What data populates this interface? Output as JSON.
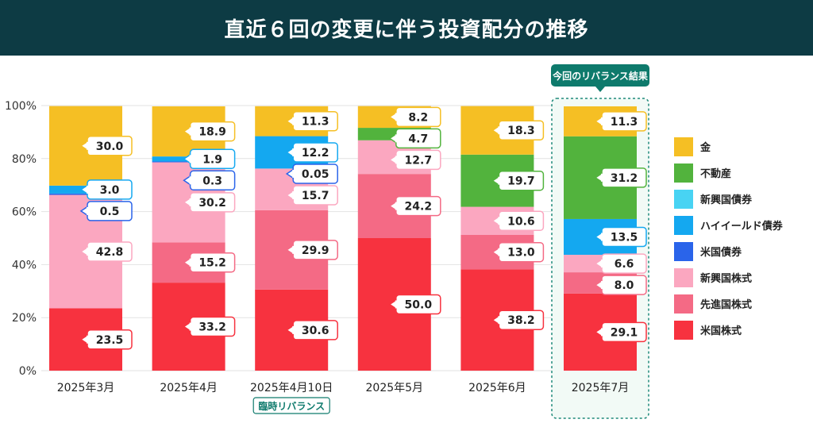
{
  "header": {
    "title": "直近６回の変更に伴う投資配分の推移"
  },
  "badges": {
    "current_result": "今回のリバランス結果",
    "temporary_rebalance": "臨時リバランス"
  },
  "chart_data": {
    "type": "bar",
    "stacked": true,
    "categories": [
      "2025年3月",
      "2025年4月",
      "2025年4月10日",
      "2025年5月",
      "2025年6月",
      "2025年7月"
    ],
    "y_ticks": [
      "0%",
      "20%",
      "40%",
      "60%",
      "80%",
      "100%"
    ],
    "ylim": [
      0,
      100
    ],
    "series": [
      {
        "name": "米国株式",
        "color": "#f7323f",
        "values": [
          23.5,
          33.2,
          30.6,
          50.0,
          38.2,
          29.1
        ]
      },
      {
        "name": "先進国株式",
        "color": "#f46a85",
        "values": [
          0,
          15.2,
          29.9,
          24.2,
          13.0,
          8.0
        ]
      },
      {
        "name": "新興国株式",
        "color": "#fba7c0",
        "values": [
          42.8,
          30.2,
          15.7,
          12.7,
          10.6,
          6.6
        ]
      },
      {
        "name": "米国債券",
        "color": "#2a64ea",
        "values": [
          0.5,
          0.3,
          0.05,
          0,
          0,
          0
        ]
      },
      {
        "name": "ハイイールド債券",
        "color": "#14a8f0",
        "values": [
          3.0,
          1.9,
          12.2,
          0,
          0,
          13.5
        ]
      },
      {
        "name": "新興国債券",
        "color": "#48d3f3",
        "values": [
          0,
          0,
          0,
          0,
          0,
          0
        ]
      },
      {
        "name": "不動産",
        "color": "#52b33d",
        "values": [
          0,
          0,
          0,
          4.7,
          19.7,
          31.2
        ]
      },
      {
        "name": "金",
        "color": "#f5bf24",
        "values": [
          30.0,
          18.9,
          11.3,
          8.2,
          18.3,
          11.3
        ]
      }
    ],
    "legend_order": [
      "金",
      "不動産",
      "新興国債券",
      "ハイイールド債券",
      "米国債券",
      "新興国株式",
      "先進国株式",
      "米国株式"
    ],
    "legend_position": "right",
    "grid": true,
    "annotations": [
      {
        "category": "2025年7月",
        "text": "今回のリバランス結果"
      },
      {
        "category": "2025年4月10日",
        "text": "臨時リバランス"
      }
    ]
  }
}
